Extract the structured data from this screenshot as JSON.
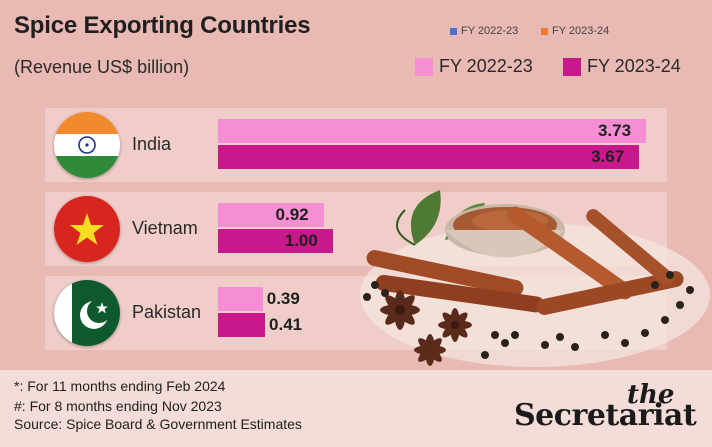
{
  "header": {
    "title": "Spice Exporting Countries",
    "subtitle": "(Revenue US$ billion)"
  },
  "legend_small": [
    {
      "label": "FY 2022-23",
      "color": "#4a6fd1"
    },
    {
      "label": "FY 2023-24",
      "color": "#f07a35"
    }
  ],
  "legend_big": [
    {
      "label": "FY 2022-23",
      "color": "#f58ed2"
    },
    {
      "label": "FY 2023-24",
      "color": "#c8198c"
    }
  ],
  "chart_data": {
    "type": "bar",
    "orientation": "horizontal",
    "title": "Spice Exporting Countries",
    "subtitle": "(Revenue US$ billion)",
    "categories": [
      "India",
      "Vietnam",
      "Pakistan"
    ],
    "series": [
      {
        "name": "FY 2022-23",
        "values": [
          3.73,
          0.92,
          0.39
        ],
        "labels": [
          "3.73",
          "0.92",
          "0.39"
        ]
      },
      {
        "name": "FY 2023-24",
        "values": [
          3.67,
          1.0,
          0.41
        ],
        "labels": [
          "3.67",
          "1.00",
          "0.41"
        ]
      }
    ],
    "xlim": [
      0,
      3.8
    ],
    "grid": false,
    "legend": "top-right"
  },
  "colors": {
    "series1": "#f58ed2",
    "series2": "#c8198c"
  },
  "footnotes": [
    "*: For 11 months ending Feb 2024",
    "#: For 8 months ending Nov 2023",
    "Source: Spice Board & Government Estimates"
  ],
  "brand": {
    "the": "the",
    "name": "Secretariat"
  }
}
